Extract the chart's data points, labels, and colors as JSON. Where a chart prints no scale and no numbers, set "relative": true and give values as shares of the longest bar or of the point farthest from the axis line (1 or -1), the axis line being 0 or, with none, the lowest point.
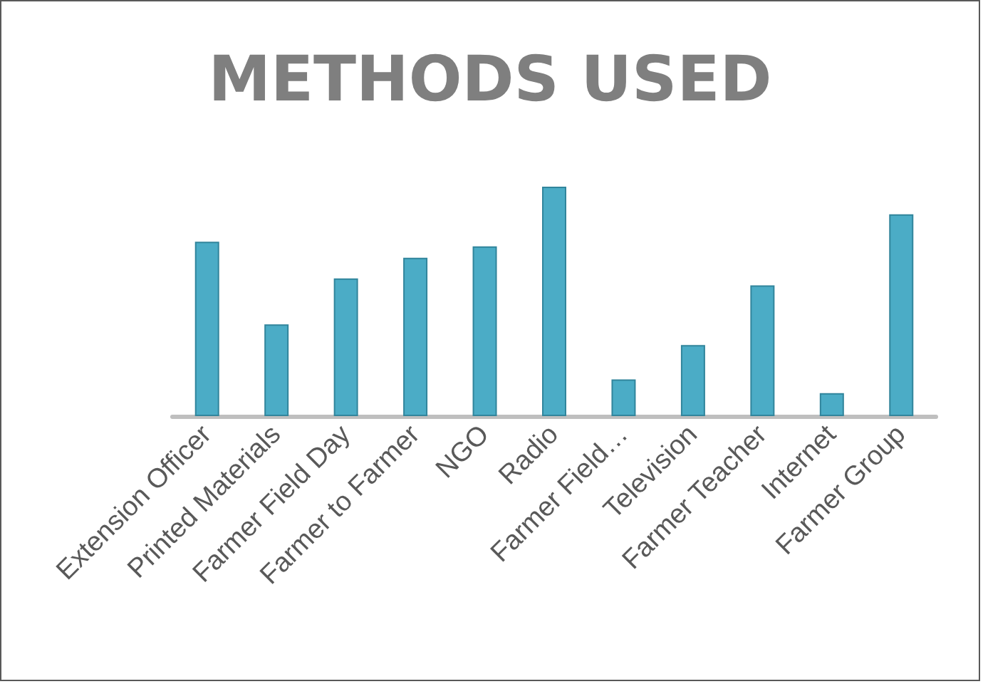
{
  "chart_data": {
    "type": "bar",
    "title": "METHODS USED",
    "categories": [
      "Extension Officer",
      "Printed Materials",
      "Farmer Field Day",
      "Farmer to Farmer",
      "NGO",
      "Radio",
      "Farmer Field…",
      "Television",
      "Farmer Teacher",
      "Internet",
      "Farmer Group"
    ],
    "values": [
      0.76,
      0.4,
      0.6,
      0.69,
      0.74,
      1,
      0.16,
      0.31,
      0.57,
      0.1,
      0.88
    ],
    "color": "#4bacc6",
    "relative": true
  }
}
